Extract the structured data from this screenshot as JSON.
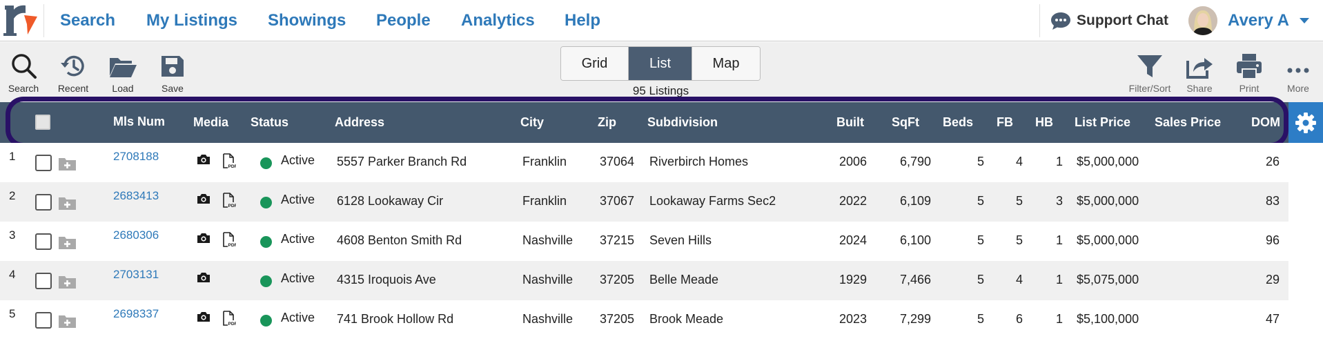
{
  "nav": {
    "links": [
      "Search",
      "My Listings",
      "Showings",
      "People",
      "Analytics",
      "Help"
    ],
    "support_label": "Support Chat",
    "user_name": "Avery A",
    "brand_color": "#2e79b9"
  },
  "toolbar": {
    "left_tools": [
      {
        "label": "Search",
        "icon": "magnifier-icon"
      },
      {
        "label": "Recent",
        "icon": "history-icon"
      },
      {
        "label": "Load",
        "icon": "folder-open-icon"
      },
      {
        "label": "Save",
        "icon": "floppy-disk-icon"
      }
    ],
    "right_tools": [
      {
        "label": "Filter/Sort",
        "icon": "funnel-icon"
      },
      {
        "label": "Share",
        "icon": "share-icon"
      },
      {
        "label": "Print",
        "icon": "printer-icon"
      },
      {
        "label": "More",
        "icon": "ellipsis-icon"
      }
    ],
    "views": [
      "Grid",
      "List",
      "Map"
    ],
    "active_view": "List",
    "listing_count": "95 Listings"
  },
  "table": {
    "header_color": "#44586d",
    "columns": [
      "Mls Num",
      "Media",
      "Status",
      "Address",
      "City",
      "Zip",
      "Subdivision",
      "Built",
      "SqFt",
      "Beds",
      "FB",
      "HB",
      "List Price",
      "Sales Price",
      "DOM"
    ],
    "rows": [
      {
        "num": "1",
        "mls": "2708188",
        "pdf": true,
        "status": "Active",
        "address": "5557 Parker Branch Rd",
        "city": "Franklin",
        "zip": "37064",
        "subdivision": "Riverbirch Homes",
        "built": "2006",
        "sqft": "6,790",
        "beds": "5",
        "fb": "4",
        "hb": "1",
        "list_price": "$5,000,000",
        "sales_price": "",
        "dom": "26"
      },
      {
        "num": "2",
        "mls": "2683413",
        "pdf": true,
        "status": "Active",
        "address": "6128 Lookaway Cir",
        "city": "Franklin",
        "zip": "37067",
        "subdivision": "Lookaway Farms Sec2",
        "built": "2022",
        "sqft": "6,109",
        "beds": "5",
        "fb": "5",
        "hb": "3",
        "list_price": "$5,000,000",
        "sales_price": "",
        "dom": "83"
      },
      {
        "num": "3",
        "mls": "2680306",
        "pdf": true,
        "status": "Active",
        "address": "4608 Benton Smith Rd",
        "city": "Nashville",
        "zip": "37215",
        "subdivision": "Seven Hills",
        "built": "2024",
        "sqft": "6,100",
        "beds": "5",
        "fb": "5",
        "hb": "1",
        "list_price": "$5,000,000",
        "sales_price": "",
        "dom": "96"
      },
      {
        "num": "4",
        "mls": "2703131",
        "pdf": false,
        "status": "Active",
        "address": "4315 Iroquois Ave",
        "city": "Nashville",
        "zip": "37205",
        "subdivision": "Belle Meade",
        "built": "1929",
        "sqft": "7,466",
        "beds": "5",
        "fb": "4",
        "hb": "1",
        "list_price": "$5,075,000",
        "sales_price": "",
        "dom": "29"
      },
      {
        "num": "5",
        "mls": "2698337",
        "pdf": true,
        "status": "Active",
        "address": "741 Brook Hollow Rd",
        "city": "Nashville",
        "zip": "37205",
        "subdivision": "Brook Meade",
        "built": "2023",
        "sqft": "7,299",
        "beds": "5",
        "fb": "6",
        "hb": "1",
        "list_price": "$5,100,000",
        "sales_price": "",
        "dom": "47"
      }
    ],
    "status_color": "#19955a"
  }
}
